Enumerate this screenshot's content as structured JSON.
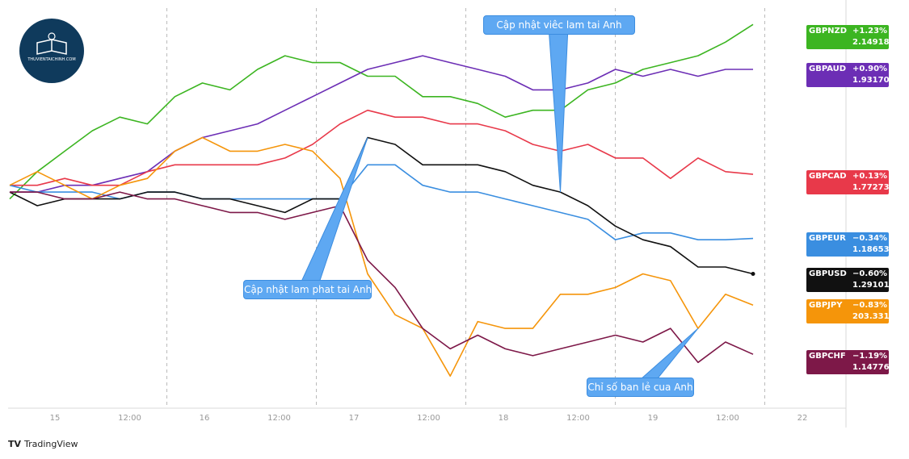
{
  "chart_data": {
    "type": "line",
    "x_ticks": [
      "15",
      "12:00",
      "16",
      "12:00",
      "17",
      "12:00",
      "18",
      "12:00",
      "19",
      "12:00",
      "22"
    ],
    "y_unit": "% change",
    "ylim": [
      -1.55,
      1.35
    ],
    "grid": false,
    "series": [
      {
        "name": "GBPNZD",
        "color": "#3cb521",
        "change": "+1.23%",
        "price": "2.14918",
        "values": [
          -0.05,
          0.15,
          0.3,
          0.45,
          0.55,
          0.5,
          0.7,
          0.8,
          0.75,
          0.9,
          1.0,
          0.95,
          0.95,
          0.85,
          0.85,
          0.7,
          0.7,
          0.65,
          0.55,
          0.6,
          0.6,
          0.75,
          0.8,
          0.9,
          0.95,
          1.0,
          1.1,
          1.23
        ]
      },
      {
        "name": "GBPAUD",
        "color": "#6c2eb5",
        "change": "+0.90%",
        "price": "1.93170",
        "values": [
          0.0,
          0.0,
          0.05,
          0.05,
          0.1,
          0.15,
          0.3,
          0.4,
          0.45,
          0.5,
          0.6,
          0.7,
          0.8,
          0.9,
          0.95,
          1.0,
          0.95,
          0.9,
          0.85,
          0.75,
          0.75,
          0.8,
          0.9,
          0.85,
          0.9,
          0.85,
          0.9,
          0.9
        ]
      },
      {
        "name": "GBPCAD",
        "color": "#e8394a",
        "change": "+0.13%",
        "price": "1.77273",
        "values": [
          0.05,
          0.05,
          0.1,
          0.05,
          0.05,
          0.15,
          0.2,
          0.2,
          0.2,
          0.2,
          0.25,
          0.35,
          0.5,
          0.6,
          0.55,
          0.55,
          0.5,
          0.5,
          0.45,
          0.35,
          0.3,
          0.35,
          0.25,
          0.25,
          0.1,
          0.25,
          0.15,
          0.13
        ]
      },
      {
        "name": "GBPEUR",
        "color": "#3a8ee0",
        "change": "−0.34%",
        "price": "1.18653",
        "values": [
          0.05,
          0.0,
          0.0,
          0.0,
          -0.05,
          0.0,
          0.0,
          -0.05,
          -0.05,
          -0.05,
          -0.05,
          -0.05,
          -0.05,
          0.2,
          0.2,
          0.05,
          0.0,
          0.0,
          -0.05,
          -0.1,
          -0.15,
          -0.2,
          -0.35,
          -0.3,
          -0.3,
          -0.35,
          -0.35,
          -0.34
        ]
      },
      {
        "name": "GBPUSD",
        "color": "#111111",
        "change": "−0.60%",
        "price": "1.29101",
        "values": [
          0.0,
          -0.1,
          -0.05,
          -0.05,
          -0.05,
          0.0,
          0.0,
          -0.05,
          -0.05,
          -0.1,
          -0.15,
          -0.05,
          -0.05,
          0.4,
          0.35,
          0.2,
          0.2,
          0.2,
          0.15,
          0.05,
          0.0,
          -0.1,
          -0.25,
          -0.35,
          -0.4,
          -0.55,
          -0.55,
          -0.6
        ]
      },
      {
        "name": "GBPJPY",
        "color": "#f5950a",
        "change": "−0.83%",
        "price": "203.33100",
        "values": [
          0.05,
          0.15,
          0.05,
          -0.05,
          0.05,
          0.1,
          0.3,
          0.4,
          0.3,
          0.3,
          0.35,
          0.3,
          0.1,
          -0.6,
          -0.9,
          -1.0,
          -1.35,
          -0.95,
          -1.0,
          -1.0,
          -0.75,
          -0.75,
          -0.7,
          -0.6,
          -0.65,
          -1.0,
          -0.75,
          -0.83
        ]
      },
      {
        "name": "GBPCHF",
        "color": "#7d1848",
        "change": "−1.19%",
        "price": "1.14776",
        "values": [
          0.0,
          0.0,
          -0.05,
          -0.05,
          0.0,
          -0.05,
          -0.05,
          -0.1,
          -0.15,
          -0.15,
          -0.2,
          -0.15,
          -0.1,
          -0.5,
          -0.7,
          -1.0,
          -1.15,
          -1.05,
          -1.15,
          -1.2,
          -1.15,
          -1.1,
          -1.05,
          -1.1,
          -1.0,
          -1.25,
          -1.1,
          -1.19
        ]
      }
    ],
    "annotations": [
      {
        "text": "Cập nhật viêc lam tai Anh",
        "series": "GBPUSD",
        "index": 20
      },
      {
        "text": "Cập nhật lam phat tai Anh",
        "series": "GBPUSD",
        "index": 13
      },
      {
        "text": "Chỉ số ban lẻ cua Anh",
        "series": "GBPJPY",
        "index": 25
      }
    ]
  },
  "logo": {
    "text": "THUVIENTAICHINH.COM"
  },
  "footer": {
    "brand_mark": "TV",
    "brand_text": "TradingView"
  }
}
